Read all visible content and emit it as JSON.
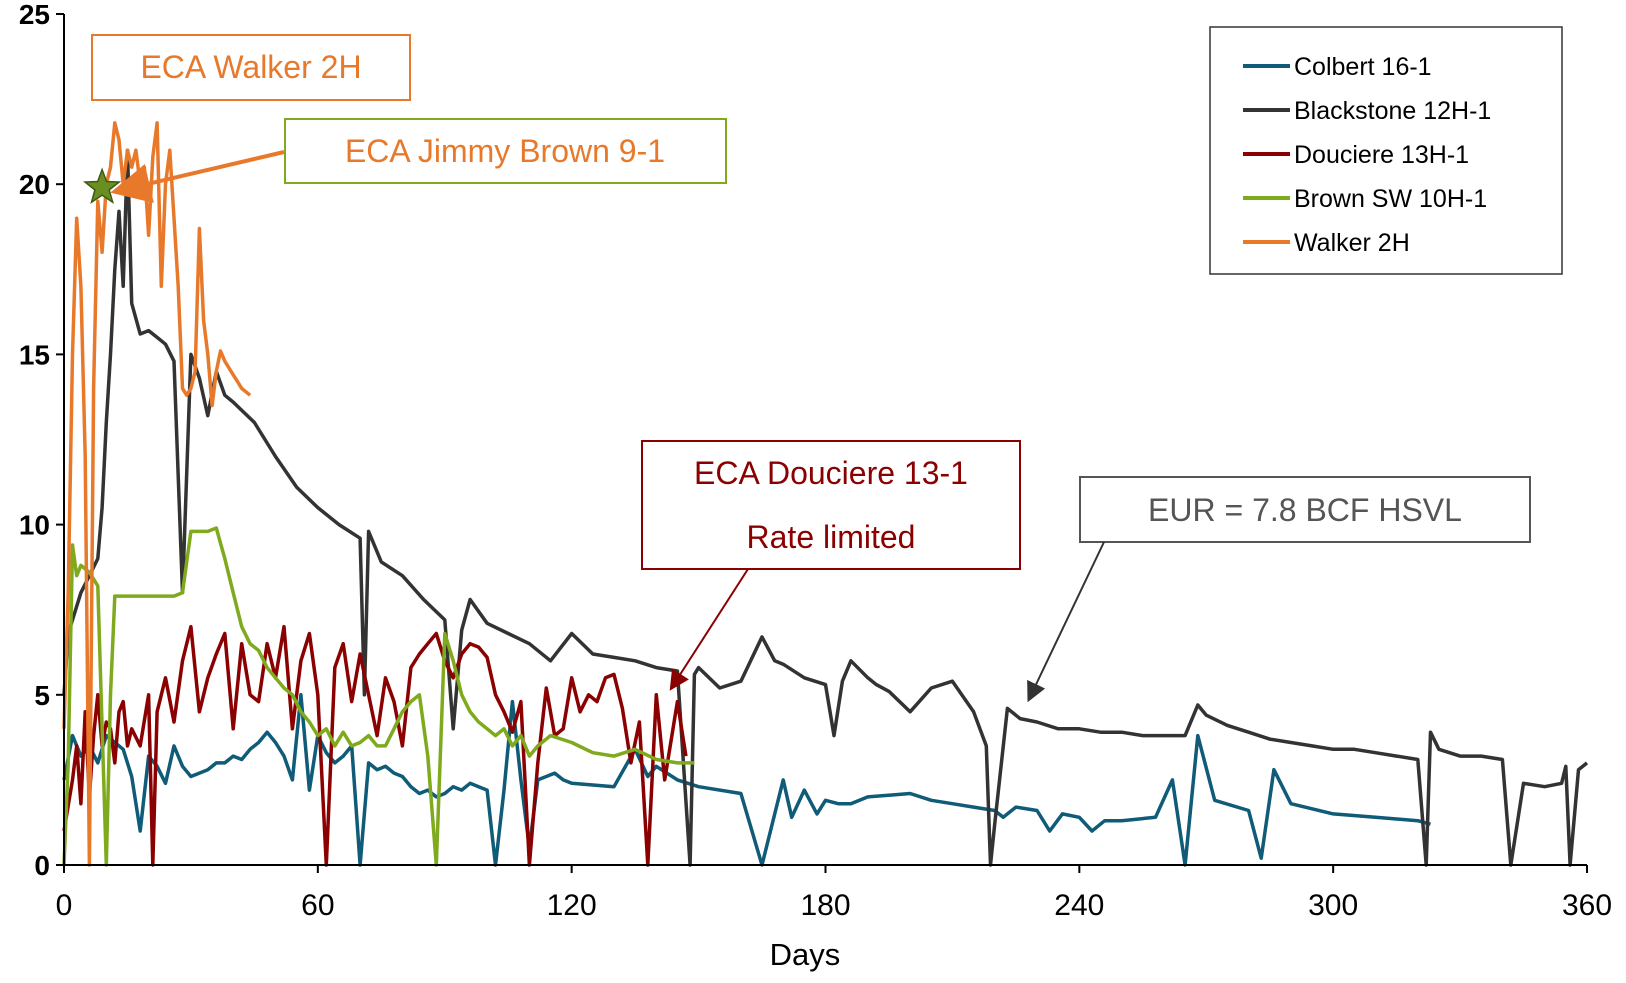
{
  "chart_data": {
    "type": "line",
    "title": "",
    "xlabel": "Days",
    "ylabel": "",
    "xlim": [
      0,
      360
    ],
    "ylim": [
      0,
      25
    ],
    "x_ticks": [
      "0",
      "60",
      "120",
      "180",
      "240",
      "300",
      "360"
    ],
    "y_ticks": [
      "0",
      "5",
      "10",
      "15",
      "20",
      "25"
    ],
    "legend_position": "top-right",
    "grid": false,
    "series": [
      {
        "name": "Colbert 16-1",
        "color": "#0f5b78",
        "x": [
          0,
          2,
          4,
          6,
          8,
          10,
          12,
          14,
          16,
          18,
          20,
          22,
          24,
          26,
          28,
          30,
          32,
          34,
          36,
          38,
          40,
          42,
          44,
          46,
          48,
          50,
          52,
          54,
          56,
          58,
          60,
          62,
          64,
          66,
          68,
          70,
          72,
          74,
          76,
          78,
          80,
          82,
          84,
          86,
          88,
          90,
          92,
          94,
          96,
          98,
          100,
          102,
          104,
          106,
          108,
          110,
          112,
          114,
          116,
          118,
          120,
          130,
          135,
          138,
          140,
          145,
          150,
          160,
          165,
          170,
          172,
          175,
          178,
          180,
          183,
          186,
          190,
          200,
          205,
          210,
          215,
          220,
          222,
          225,
          230,
          233,
          236,
          240,
          243,
          246,
          250,
          258,
          262,
          265,
          268,
          272,
          280,
          283,
          286,
          290,
          300,
          310,
          320,
          323
        ],
        "y": [
          2.5,
          3.8,
          3.2,
          3.5,
          3.0,
          3.8,
          3.6,
          3.4,
          2.6,
          1.0,
          3.2,
          2.9,
          2.4,
          3.5,
          2.9,
          2.6,
          2.7,
          2.8,
          3.0,
          3.0,
          3.2,
          3.1,
          3.4,
          3.6,
          3.9,
          3.6,
          3.2,
          2.5,
          5.0,
          2.2,
          3.8,
          3.3,
          3.0,
          3.2,
          3.5,
          0.0,
          3.0,
          2.8,
          2.9,
          2.7,
          2.6,
          2.3,
          2.1,
          2.2,
          2.0,
          2.1,
          2.3,
          2.2,
          2.4,
          2.3,
          2.2,
          0.0,
          2.2,
          4.8,
          2.5,
          0.5,
          2.5,
          2.6,
          2.7,
          2.5,
          2.4,
          2.3,
          3.4,
          2.6,
          2.9,
          2.5,
          2.3,
          2.1,
          0.0,
          2.5,
          1.4,
          2.2,
          1.5,
          1.9,
          1.8,
          1.8,
          2.0,
          2.1,
          1.9,
          1.8,
          1.7,
          1.6,
          1.4,
          1.7,
          1.6,
          1.0,
          1.5,
          1.4,
          1.0,
          1.3,
          1.3,
          1.4,
          2.5,
          0.0,
          3.8,
          1.9,
          1.6,
          0.2,
          2.8,
          1.8,
          1.5,
          1.4,
          1.3,
          1.2
        ],
        "label_shown": true
      },
      {
        "name": "Blackstone 12H-1",
        "color": "#333333",
        "x": [
          0,
          1,
          2,
          4,
          6,
          8,
          9,
          10,
          11,
          12,
          13,
          14,
          15,
          16,
          18,
          20,
          22,
          24,
          26,
          28,
          30,
          32,
          34,
          36,
          38,
          40,
          45,
          50,
          55,
          60,
          65,
          70,
          71,
          72,
          75,
          80,
          85,
          90,
          92,
          94,
          96,
          100,
          105,
          110,
          115,
          120,
          125,
          130,
          135,
          140,
          145,
          148,
          149,
          150,
          155,
          160,
          165,
          168,
          170,
          175,
          180,
          182,
          184,
          186,
          190,
          192,
          195,
          200,
          205,
          210,
          215,
          218,
          219,
          220,
          223,
          226,
          230,
          235,
          240,
          245,
          250,
          255,
          260,
          265,
          268,
          270,
          275,
          280,
          285,
          290,
          295,
          300,
          305,
          310,
          315,
          320,
          322,
          323,
          325,
          330,
          335,
          340,
          342,
          345,
          350,
          354,
          355,
          356,
          358,
          360
        ],
        "y": [
          5.0,
          6.8,
          7.2,
          8.0,
          8.5,
          9.0,
          10.5,
          13.0,
          15.0,
          17.5,
          19.2,
          17.0,
          21.0,
          16.5,
          15.6,
          15.7,
          15.5,
          15.3,
          14.8,
          8.0,
          15.0,
          14.3,
          13.2,
          14.5,
          13.8,
          13.6,
          13.0,
          12.0,
          11.1,
          10.5,
          10.0,
          9.6,
          5.0,
          9.8,
          8.9,
          8.5,
          7.8,
          7.2,
          4.0,
          6.9,
          7.8,
          7.1,
          6.8,
          6.5,
          6.0,
          6.8,
          6.2,
          6.1,
          6.0,
          5.8,
          5.7,
          0.0,
          5.6,
          5.8,
          5.2,
          5.4,
          6.7,
          6.0,
          5.9,
          5.5,
          5.3,
          3.8,
          5.4,
          6.0,
          5.5,
          5.3,
          5.1,
          4.5,
          5.2,
          5.4,
          4.5,
          3.5,
          0.0,
          1.2,
          4.6,
          4.3,
          4.2,
          4.0,
          4.0,
          3.9,
          3.9,
          3.8,
          3.8,
          3.8,
          4.7,
          4.4,
          4.1,
          3.9,
          3.7,
          3.6,
          3.5,
          3.4,
          3.4,
          3.3,
          3.2,
          3.1,
          0.0,
          3.9,
          3.4,
          3.2,
          3.2,
          3.1,
          0.0,
          2.4,
          2.3,
          2.4,
          2.9,
          0.0,
          2.8,
          3.0
        ],
        "label_shown": true
      },
      {
        "name": "Douciere 13H-1",
        "color": "#8b0000",
        "x": [
          0,
          2,
          3,
          4,
          5,
          6,
          7,
          8,
          9,
          10,
          11,
          12,
          13,
          14,
          15,
          16,
          18,
          20,
          21,
          22,
          24,
          26,
          28,
          30,
          32,
          34,
          36,
          38,
          40,
          42,
          44,
          46,
          48,
          50,
          52,
          54,
          56,
          58,
          60,
          62,
          64,
          66,
          68,
          70,
          72,
          74,
          76,
          78,
          80,
          82,
          84,
          86,
          88,
          90,
          92,
          94,
          96,
          98,
          100,
          102,
          104,
          106,
          108,
          110,
          112,
          114,
          116,
          118,
          120,
          122,
          124,
          126,
          128,
          130,
          132,
          134,
          136,
          138,
          140,
          142,
          145,
          147
        ],
        "y": [
          1.0,
          2.5,
          3.5,
          1.8,
          4.5,
          2.0,
          3.8,
          5.0,
          3.5,
          4.2,
          4.0,
          3.0,
          4.5,
          4.8,
          3.5,
          4.0,
          3.5,
          5.0,
          0.0,
          4.5,
          5.5,
          4.2,
          6.0,
          7.0,
          4.5,
          5.5,
          6.2,
          6.8,
          4.0,
          6.5,
          5.0,
          4.8,
          6.5,
          5.5,
          7.0,
          4.0,
          6.0,
          6.8,
          5.0,
          0.0,
          5.8,
          6.5,
          4.8,
          6.2,
          5.0,
          3.8,
          5.5,
          4.8,
          3.5,
          5.8,
          6.2,
          6.5,
          6.8,
          6.0,
          5.5,
          6.2,
          6.5,
          6.4,
          6.1,
          5.0,
          4.5,
          3.9,
          4.8,
          0.0,
          3.0,
          5.2,
          3.8,
          4.0,
          5.5,
          4.5,
          5.0,
          4.8,
          5.5,
          5.6,
          4.6,
          3.0,
          4.2,
          0.0,
          5.0,
          2.5,
          4.8,
          3.2
        ],
        "label_shown": true
      },
      {
        "name": "Brown SW 10H-1",
        "color": "#7faa1e",
        "x": [
          0,
          1,
          2,
          3,
          4,
          5,
          6,
          8,
          10,
          11,
          12,
          14,
          16,
          18,
          20,
          22,
          24,
          26,
          28,
          30,
          32,
          34,
          36,
          38,
          40,
          42,
          44,
          46,
          48,
          50,
          52,
          54,
          56,
          58,
          60,
          62,
          64,
          66,
          68,
          70,
          72,
          74,
          76,
          78,
          80,
          82,
          84,
          86,
          88,
          90,
          92,
          94,
          96,
          98,
          100,
          102,
          104,
          106,
          108,
          110,
          112,
          115,
          120,
          125,
          130,
          135,
          140,
          145,
          149
        ],
        "y": [
          0.0,
          3.0,
          9.4,
          8.5,
          8.8,
          8.7,
          8.6,
          8.2,
          0.0,
          5.0,
          7.9,
          7.9,
          7.9,
          7.9,
          7.9,
          7.9,
          7.9,
          7.9,
          8.0,
          9.8,
          9.8,
          9.8,
          9.9,
          9.0,
          8.0,
          7.0,
          6.5,
          6.3,
          5.8,
          5.5,
          5.2,
          5.0,
          4.5,
          4.2,
          3.8,
          4.0,
          3.5,
          3.9,
          3.5,
          3.6,
          3.8,
          3.5,
          3.5,
          4.0,
          4.5,
          4.8,
          5.0,
          3.2,
          0.0,
          6.8,
          6.0,
          5.0,
          4.5,
          4.2,
          4.0,
          3.8,
          4.0,
          3.5,
          3.8,
          3.2,
          3.5,
          3.8,
          3.6,
          3.3,
          3.2,
          3.4,
          3.1,
          3.0,
          3.0
        ],
        "label_shown": true
      },
      {
        "name": "Walker 2H",
        "color": "#e8792b",
        "x": [
          0,
          1,
          2,
          3,
          4,
          5,
          6,
          7,
          8,
          9,
          10,
          11,
          12,
          13,
          14,
          15,
          16,
          17,
          18,
          19,
          20,
          21,
          22,
          23,
          24,
          25,
          26,
          27,
          28,
          29,
          30,
          31,
          32,
          33,
          34,
          35,
          36,
          37,
          38,
          39,
          40,
          41,
          42,
          43,
          44
        ],
        "y": [
          4.0,
          8.0,
          15.0,
          19.0,
          17.0,
          12.0,
          0.0,
          14.0,
          19.5,
          18.0,
          20.0,
          20.5,
          21.8,
          21.3,
          20.0,
          21.0,
          20.5,
          21.0,
          20.0,
          20.5,
          18.5,
          20.8,
          21.8,
          17.0,
          20.0,
          21.0,
          19.0,
          17.0,
          14.0,
          13.8,
          14.0,
          14.5,
          18.7,
          16.0,
          15.0,
          13.5,
          14.5,
          15.1,
          14.8,
          14.6,
          14.4,
          14.2,
          14.0,
          13.9,
          13.8
        ],
        "label_shown": true
      }
    ],
    "annotations": [
      {
        "text": "ECA Walker 2H",
        "color": "#e8792b"
      },
      {
        "text": "ECA Jimmy Brown 9-1",
        "color": "#e8792b",
        "border": "#7faa1e"
      },
      {
        "text_line1": "ECA Douciere 13-1",
        "text_line2": "Rate limited",
        "color": "#8b0000"
      },
      {
        "text": "EUR = 7.8 BCF HSVL",
        "color": "#555555"
      }
    ],
    "marker": {
      "shape": "star",
      "x": 9,
      "y": 19.9,
      "color": "#6b8e23"
    }
  }
}
